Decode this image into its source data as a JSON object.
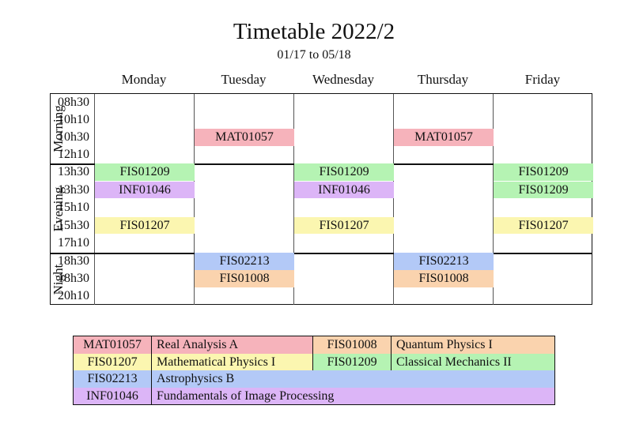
{
  "title": "Timetable 2022/2",
  "subtitle": "01/17 to 05/18",
  "days": [
    "Monday",
    "Tuesday",
    "Wednesday",
    "Thursday",
    "Friday"
  ],
  "colors": {
    "MAT01057": "#f6b3bb",
    "FIS01209": "#b5f3b3",
    "INF01046": "#dcb5f7",
    "FIS01207": "#fbf6b0",
    "FIS02213": "#b3c9f7",
    "FIS01008": "#fad3ae"
  },
  "sections": [
    {
      "label": "Morning",
      "times": [
        "08h30",
        "10h10",
        "10h30",
        "12h10"
      ],
      "slots": [
        {
          "day": 1,
          "row": 2,
          "code": "MAT01057"
        },
        {
          "day": 3,
          "row": 2,
          "code": "MAT01057"
        }
      ]
    },
    {
      "label": "Evening",
      "times": [
        "13h30",
        "13h30",
        "15h10",
        "15h30",
        "17h10"
      ],
      "slots": [
        {
          "day": 0,
          "row": 0,
          "code": "FIS01209"
        },
        {
          "day": 0,
          "row": 1,
          "code": "INF01046"
        },
        {
          "day": 0,
          "row": 3,
          "code": "FIS01207"
        },
        {
          "day": 2,
          "row": 0,
          "code": "FIS01209"
        },
        {
          "day": 2,
          "row": 1,
          "code": "INF01046"
        },
        {
          "day": 2,
          "row": 3,
          "code": "FIS01207"
        },
        {
          "day": 4,
          "row": 0,
          "code": "FIS01209"
        },
        {
          "day": 4,
          "row": 1,
          "code": "FIS01209"
        },
        {
          "day": 4,
          "row": 3,
          "code": "FIS01207"
        }
      ]
    },
    {
      "label": "Night",
      "times": [
        "18h30",
        "18h30",
        "20h10"
      ],
      "slots": [
        {
          "day": 1,
          "row": 0,
          "code": "FIS02213"
        },
        {
          "day": 1,
          "row": 1,
          "code": "FIS01008"
        },
        {
          "day": 3,
          "row": 0,
          "code": "FIS02213"
        },
        {
          "day": 3,
          "row": 1,
          "code": "FIS01008"
        }
      ]
    }
  ],
  "legend": [
    [
      {
        "code": "MAT01057",
        "name": "Real Analysis A"
      },
      {
        "code": "FIS01008",
        "name": "Quantum Physics I"
      }
    ],
    [
      {
        "code": "FIS01207",
        "name": "Mathematical Physics I"
      },
      {
        "code": "FIS01209",
        "name": "Classical Mechanics II"
      }
    ],
    [
      {
        "code": "FIS02213",
        "name": "Astrophysics B"
      }
    ],
    [
      {
        "code": "INF01046",
        "name": "Fundamentals of Image Processing"
      }
    ]
  ]
}
